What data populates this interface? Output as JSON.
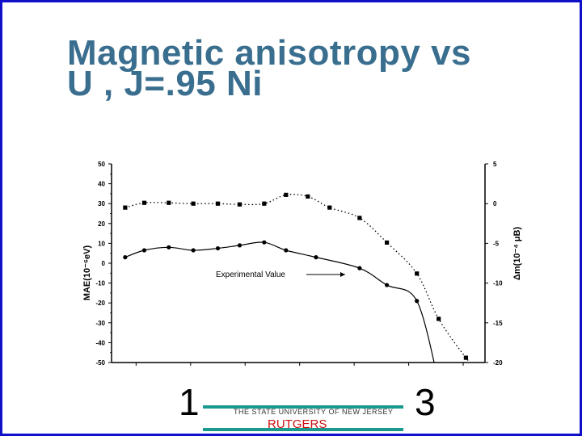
{
  "slide": {
    "title_line1": "Magnetic anisotropy vs",
    "title_line2": "U , J=.95 Ni",
    "footer_left": "1",
    "footer_right": "3",
    "university": "THE STATE UNIVERSITY OF NEW JERSEY",
    "rutgers": "RUTGERS"
  },
  "colors": {
    "border": "#1010c8",
    "title": "#3a6e8f",
    "rule": "#1a9a8f",
    "rutgers": "#cc1111"
  },
  "chart_data": {
    "type": "line",
    "ylabel": "MAE(10⁻⁶eV)",
    "y2label": "Δm(10⁻⁴ μB)",
    "yticks": [
      50,
      40,
      30,
      20,
      10,
      0,
      -10,
      -20,
      -30,
      -40,
      -50
    ],
    "y2ticks": [
      5,
      0,
      -5,
      -10,
      -15,
      -20
    ],
    "ylim": [
      -50,
      50
    ],
    "y2lim": [
      -20,
      5
    ],
    "annotation": "Experimental Value",
    "series": [
      {
        "axis": "left",
        "style": "solid",
        "marker": "circle",
        "x": [
          0.5,
          1.2,
          2.1,
          3.0,
          3.9,
          4.7,
          5.6,
          6.4,
          7.5,
          9.1,
          10.1,
          11.2
        ],
        "y": [
          3,
          6.5,
          8,
          6.5,
          7.5,
          9,
          10.5,
          6.5,
          3,
          -2.5,
          -11,
          -19
        ]
      },
      {
        "axis": "right",
        "style": "dotted",
        "marker": "square",
        "x": [
          0.5,
          1.2,
          2.1,
          3.0,
          3.9,
          4.7,
          5.6,
          6.4,
          7.2,
          8.0,
          9.1,
          10.1,
          11.2,
          12.0,
          13.0
        ],
        "y": [
          -0.5,
          0.1,
          0.1,
          0,
          0,
          -0.1,
          0,
          1.1,
          0.9,
          -0.5,
          -1.8,
          -4.9,
          -8.8,
          -14.5,
          -19.4
        ]
      }
    ]
  }
}
